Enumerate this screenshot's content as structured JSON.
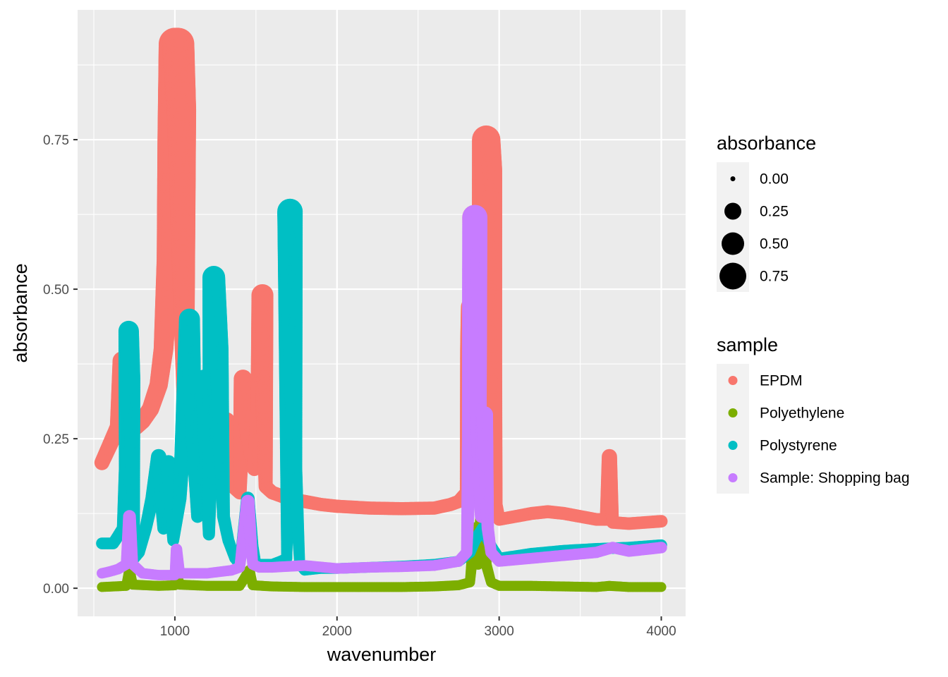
{
  "chart_data": {
    "type": "scatter",
    "title": "",
    "xlabel": "wavenumber",
    "ylabel": "absorbance",
    "xlim": [
      400,
      4150
    ],
    "ylim": [
      -0.047,
      0.967
    ],
    "x_ticks": [
      1000,
      2000,
      3000,
      4000
    ],
    "x_tick_labels": [
      "1000",
      "2000",
      "3000",
      "4000"
    ],
    "y_ticks": [
      0,
      0.25,
      0.5,
      0.75
    ],
    "y_tick_labels": [
      "0.00",
      "0.25",
      "0.50",
      "0.75"
    ],
    "grid": true,
    "legend_position": "right",
    "size_legend": {
      "title": "absorbance",
      "values": [
        0,
        0.25,
        0.5,
        0.75
      ],
      "labels": [
        "0.00",
        "0.25",
        "0.50",
        "0.75"
      ]
    },
    "color_legend": {
      "title": "sample"
    },
    "series": [
      {
        "name": "EPDM",
        "color": "#F8766D",
        "points": [
          [
            550,
            0.21
          ],
          [
            600,
            0.24
          ],
          [
            650,
            0.27
          ],
          [
            675,
            0.38
          ],
          [
            690,
            0.29
          ],
          [
            720,
            0.29
          ],
          [
            760,
            0.27
          ],
          [
            800,
            0.28
          ],
          [
            850,
            0.3
          ],
          [
            900,
            0.34
          ],
          [
            930,
            0.4
          ],
          [
            960,
            0.55
          ],
          [
            980,
            0.75
          ],
          [
            1000,
            0.91
          ],
          [
            1020,
            0.91
          ],
          [
            1040,
            0.8
          ],
          [
            1060,
            0.4
          ],
          [
            1070,
            0.25
          ],
          [
            1080,
            0.21
          ],
          [
            1110,
            0.2
          ],
          [
            1150,
            0.19
          ],
          [
            1180,
            0.19
          ],
          [
            1200,
            0.2
          ],
          [
            1250,
            0.21
          ],
          [
            1300,
            0.22
          ],
          [
            1320,
            0.28
          ],
          [
            1360,
            0.17
          ],
          [
            1400,
            0.16
          ],
          [
            1420,
            0.35
          ],
          [
            1450,
            0.26
          ],
          [
            1490,
            0.2
          ],
          [
            1520,
            0.3
          ],
          [
            1540,
            0.49
          ],
          [
            1560,
            0.17
          ],
          [
            1600,
            0.16
          ],
          [
            1650,
            0.155
          ],
          [
            1700,
            0.15
          ],
          [
            1800,
            0.145
          ],
          [
            1900,
            0.14
          ],
          [
            2000,
            0.137
          ],
          [
            2200,
            0.134
          ],
          [
            2400,
            0.133
          ],
          [
            2600,
            0.134
          ],
          [
            2700,
            0.14
          ],
          [
            2750,
            0.145
          ],
          [
            2800,
            0.16
          ],
          [
            2820,
            0.4
          ],
          [
            2830,
            0.47
          ],
          [
            2840,
            0.3
          ],
          [
            2850,
            0.62
          ],
          [
            2870,
            0.3
          ],
          [
            2900,
            0.5
          ],
          [
            2920,
            0.75
          ],
          [
            2935,
            0.7
          ],
          [
            2960,
            0.37
          ],
          [
            2980,
            0.14
          ],
          [
            3000,
            0.115
          ],
          [
            3100,
            0.12
          ],
          [
            3200,
            0.125
          ],
          [
            3300,
            0.128
          ],
          [
            3400,
            0.125
          ],
          [
            3500,
            0.12
          ],
          [
            3600,
            0.115
          ],
          [
            3660,
            0.115
          ],
          [
            3680,
            0.22
          ],
          [
            3700,
            0.11
          ],
          [
            3800,
            0.108
          ],
          [
            3900,
            0.11
          ],
          [
            4000,
            0.112
          ]
        ]
      },
      {
        "name": "Polyethylene",
        "color": "#7CAE00",
        "points": [
          [
            550,
            0.002
          ],
          [
            700,
            0.004
          ],
          [
            720,
            0.03
          ],
          [
            740,
            0.006
          ],
          [
            900,
            0.004
          ],
          [
            1000,
            0.005
          ],
          [
            1010,
            0.025
          ],
          [
            1030,
            0.006
          ],
          [
            1200,
            0.004
          ],
          [
            1400,
            0.004
          ],
          [
            1460,
            0.03
          ],
          [
            1480,
            0.005
          ],
          [
            1600,
            0.003
          ],
          [
            1800,
            0.002
          ],
          [
            2000,
            0.002
          ],
          [
            2200,
            0.002
          ],
          [
            2400,
            0.002
          ],
          [
            2600,
            0.003
          ],
          [
            2750,
            0.005
          ],
          [
            2820,
            0.01
          ],
          [
            2850,
            0.1
          ],
          [
            2870,
            0.04
          ],
          [
            2900,
            0.15
          ],
          [
            2920,
            0.04
          ],
          [
            2950,
            0.01
          ],
          [
            3000,
            0.004
          ],
          [
            3200,
            0.004
          ],
          [
            3400,
            0.003
          ],
          [
            3600,
            0.002
          ],
          [
            3680,
            0.004
          ],
          [
            3800,
            0.002
          ],
          [
            4000,
            0.002
          ]
        ]
      },
      {
        "name": "Polystyrene",
        "color": "#00BFC4",
        "points": [
          [
            550,
            0.075
          ],
          [
            620,
            0.075
          ],
          [
            680,
            0.1
          ],
          [
            700,
            0.2
          ],
          [
            715,
            0.43
          ],
          [
            730,
            0.35
          ],
          [
            750,
            0.05
          ],
          [
            780,
            0.06
          ],
          [
            820,
            0.1
          ],
          [
            860,
            0.15
          ],
          [
            900,
            0.22
          ],
          [
            930,
            0.1
          ],
          [
            960,
            0.21
          ],
          [
            990,
            0.08
          ],
          [
            1030,
            0.15
          ],
          [
            1070,
            0.35
          ],
          [
            1090,
            0.45
          ],
          [
            1110,
            0.3
          ],
          [
            1140,
            0.12
          ],
          [
            1180,
            0.35
          ],
          [
            1210,
            0.09
          ],
          [
            1240,
            0.52
          ],
          [
            1270,
            0.4
          ],
          [
            1300,
            0.12
          ],
          [
            1330,
            0.08
          ],
          [
            1370,
            0.05
          ],
          [
            1400,
            0.04
          ],
          [
            1450,
            0.15
          ],
          [
            1480,
            0.07
          ],
          [
            1500,
            0.04
          ],
          [
            1550,
            0.04
          ],
          [
            1600,
            0.04
          ],
          [
            1650,
            0.045
          ],
          [
            1690,
            0.05
          ],
          [
            1710,
            0.63
          ],
          [
            1740,
            0.2
          ],
          [
            1770,
            0.04
          ],
          [
            1800,
            0.03
          ],
          [
            1900,
            0.033
          ],
          [
            2000,
            0.033
          ],
          [
            2200,
            0.035
          ],
          [
            2400,
            0.037
          ],
          [
            2600,
            0.04
          ],
          [
            2750,
            0.045
          ],
          [
            2820,
            0.06
          ],
          [
            2850,
            0.08
          ],
          [
            2900,
            0.1
          ],
          [
            2950,
            0.07
          ],
          [
            3000,
            0.05
          ],
          [
            3200,
            0.058
          ],
          [
            3400,
            0.063
          ],
          [
            3600,
            0.066
          ],
          [
            3800,
            0.068
          ],
          [
            4000,
            0.072
          ]
        ]
      },
      {
        "name": "Sample: Shopping bag",
        "color": "#C77CFF",
        "points": [
          [
            550,
            0.025
          ],
          [
            600,
            0.028
          ],
          [
            650,
            0.032
          ],
          [
            700,
            0.04
          ],
          [
            720,
            0.12
          ],
          [
            740,
            0.04
          ],
          [
            800,
            0.025
          ],
          [
            900,
            0.022
          ],
          [
            1000,
            0.022
          ],
          [
            1010,
            0.065
          ],
          [
            1030,
            0.025
          ],
          [
            1200,
            0.025
          ],
          [
            1350,
            0.03
          ],
          [
            1400,
            0.035
          ],
          [
            1450,
            0.145
          ],
          [
            1480,
            0.04
          ],
          [
            1520,
            0.035
          ],
          [
            1600,
            0.035
          ],
          [
            1800,
            0.038
          ],
          [
            2000,
            0.033
          ],
          [
            2200,
            0.035
          ],
          [
            2400,
            0.036
          ],
          [
            2600,
            0.038
          ],
          [
            2750,
            0.045
          ],
          [
            2800,
            0.06
          ],
          [
            2820,
            0.25
          ],
          [
            2840,
            0.5
          ],
          [
            2850,
            0.62
          ],
          [
            2870,
            0.3
          ],
          [
            2890,
            0.12
          ],
          [
            2910,
            0.29
          ],
          [
            2930,
            0.1
          ],
          [
            2950,
            0.06
          ],
          [
            3000,
            0.045
          ],
          [
            3200,
            0.05
          ],
          [
            3400,
            0.055
          ],
          [
            3600,
            0.06
          ],
          [
            3700,
            0.068
          ],
          [
            3800,
            0.062
          ],
          [
            4000,
            0.068
          ]
        ]
      }
    ]
  }
}
